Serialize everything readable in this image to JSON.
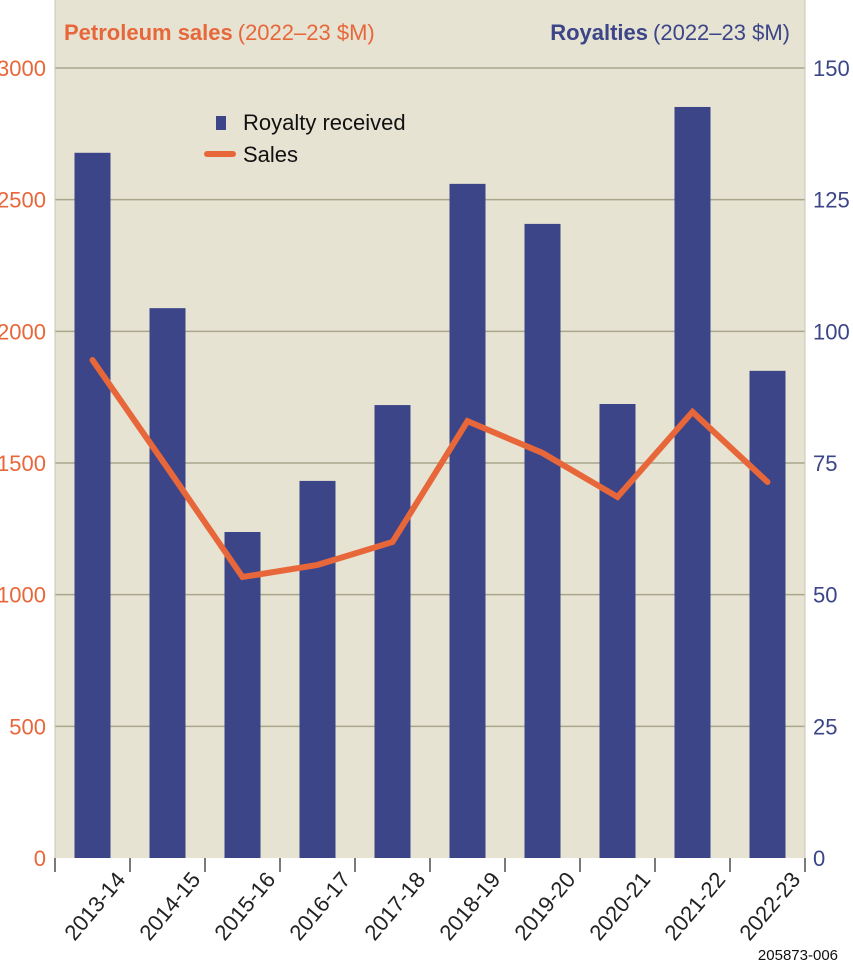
{
  "chart_data": {
    "type": "bar+line",
    "title_left": {
      "bold": "Petroleum sales",
      "unit": "(2022–23 $M)"
    },
    "title_right": {
      "bold": "Royalties",
      "unit": "(2022–23 $M)"
    },
    "categories": [
      "2013-14",
      "2014-15",
      "2015-16",
      "2016-17",
      "2017-18",
      "2018-19",
      "2019-20",
      "2020-21",
      "2021-22",
      "2022-23"
    ],
    "series": [
      {
        "name": "Royalty received",
        "type": "bar",
        "axis": "right",
        "color": "#3b4587",
        "values": [
          133.9,
          104.4,
          61.9,
          71.6,
          86.0,
          128.0,
          120.4,
          86.2,
          142.6,
          92.5
        ]
      },
      {
        "name": "Sales",
        "type": "line",
        "axis": "left",
        "color": "#e8673a",
        "values": [
          1891,
          1481,
          1067,
          1113,
          1200,
          1659,
          1538,
          1371,
          1694,
          1428
        ]
      }
    ],
    "left_axis": {
      "ylim": [
        0,
        3000
      ],
      "ticks": [
        "0",
        "500",
        "1000",
        "1500",
        "2000",
        "2500",
        "3000"
      ],
      "color": "#e8673a"
    },
    "right_axis": {
      "ylim": [
        0,
        150
      ],
      "ticks": [
        "0",
        "25",
        "50",
        "75",
        "100",
        "125",
        "150"
      ],
      "color": "#3b4587"
    },
    "grid": true,
    "legend": "top-left",
    "background": "#e6e3d2",
    "footnote": "205873-006"
  }
}
